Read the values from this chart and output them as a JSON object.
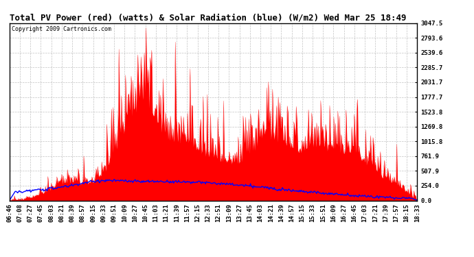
{
  "title": "Total PV Power (red) (watts) & Solar Radiation (blue) (W/m2) Wed Mar 25 18:49",
  "copyright": "Copyright 2009 Cartronics.com",
  "yticks": [
    0.0,
    254.0,
    507.9,
    761.9,
    1015.8,
    1269.8,
    1523.8,
    1777.7,
    2031.7,
    2285.7,
    2539.6,
    2793.6,
    3047.5
  ],
  "ylim": [
    0,
    3047.5
  ],
  "xtick_labels": [
    "06:46",
    "07:08",
    "07:27",
    "07:45",
    "08:03",
    "08:21",
    "08:39",
    "08:57",
    "09:15",
    "09:33",
    "09:51",
    "10:09",
    "10:27",
    "10:45",
    "11:03",
    "11:21",
    "11:39",
    "11:57",
    "12:15",
    "12:33",
    "12:51",
    "13:09",
    "13:27",
    "13:45",
    "14:03",
    "14:21",
    "14:39",
    "14:57",
    "15:15",
    "15:33",
    "15:51",
    "16:09",
    "16:27",
    "16:45",
    "17:03",
    "17:21",
    "17:39",
    "17:57",
    "18:15",
    "18:33"
  ],
  "background_color": "#ffffff",
  "grid_color": "#bbbbbb",
  "pv_color": "#ff0000",
  "solar_color": "#0000ff",
  "title_fontsize": 9,
  "tick_fontsize": 6.5
}
